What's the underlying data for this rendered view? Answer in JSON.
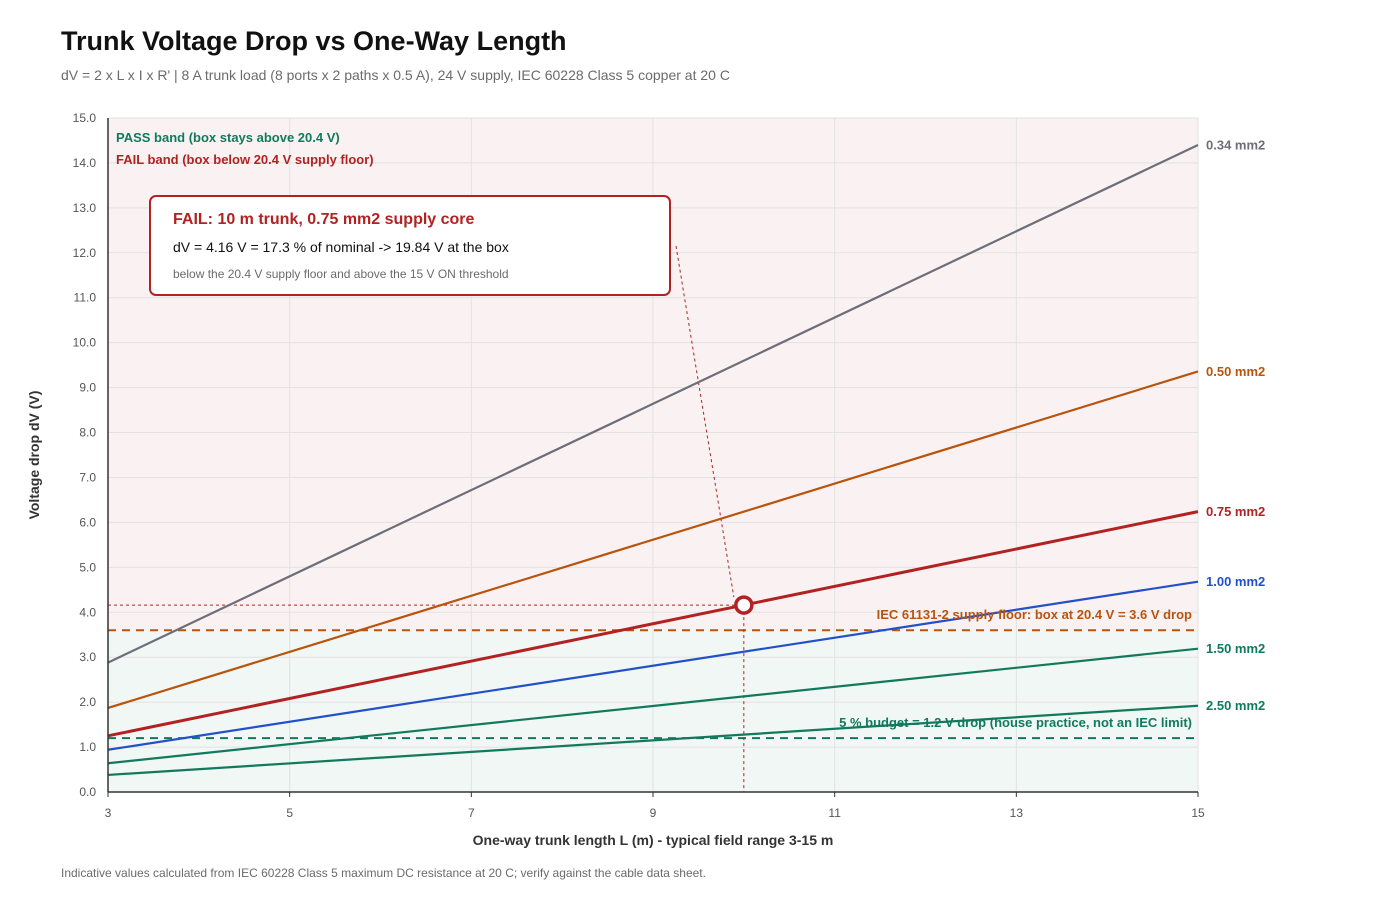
{
  "title": "Trunk Voltage Drop vs One-Way Length",
  "subtitle": "dV = 2 x L x I x R' | 8 A trunk load (8 ports x 2 paths x 0.5 A), 24 V supply, IEC 60228 Class 5 copper at 20 C",
  "footnote": "Indicative values calculated from IEC 60228 Class 5 maximum DC resistance at 20 C; verify against the cable data sheet.",
  "callout": {
    "title": "FAIL: 10 m trunk, 0.75 mm2 supply core",
    "line1": "dV = 4.16 V = 17.3 % of nominal -> 19.84 V at the box",
    "line2": "below the 20.4 V supply floor and above the 15 V ON threshold"
  },
  "chart_data": {
    "type": "line",
    "xlabel": "One-way trunk length L (m) - typical field range 3-15 m",
    "ylabel": "Voltage drop dV (V)",
    "xlim": [
      3,
      15
    ],
    "ylim": [
      0,
      15
    ],
    "x_ticks": [
      3,
      5,
      7,
      9,
      11,
      13,
      15
    ],
    "y_ticks": [
      0.0,
      1.0,
      2.0,
      3.0,
      4.0,
      5.0,
      6.0,
      7.0,
      8.0,
      9.0,
      10.0,
      11.0,
      12.0,
      13.0,
      14.0,
      15.0
    ],
    "grid": true,
    "x": [
      3,
      15
    ],
    "series": [
      {
        "name": "0.34 mm2",
        "values": [
          2.88,
          14.4
        ],
        "color": "#6e6e78"
      },
      {
        "name": "0.50 mm2",
        "values": [
          1.87,
          9.36
        ],
        "color": "#b8540d"
      },
      {
        "name": "0.75 mm2",
        "values": [
          1.25,
          6.24
        ],
        "color": "#b22222"
      },
      {
        "name": "1.00 mm2",
        "values": [
          0.94,
          4.68
        ],
        "color": "#2250c8"
      },
      {
        "name": "1.50 mm2",
        "values": [
          0.64,
          3.19
        ],
        "color": "#127a5c"
      },
      {
        "name": "2.50 mm2",
        "values": [
          0.38,
          1.92
        ],
        "color": "#127a5c"
      }
    ],
    "bands": [
      {
        "label": "PASS band (box stays above 20.4 V)",
        "range": [
          0,
          3.6
        ],
        "color": "#127a5c"
      },
      {
        "label": "FAIL band (box below 20.4 V supply floor)",
        "range": [
          3.6,
          15
        ],
        "color": "#b22222"
      }
    ],
    "reference_lines": [
      {
        "label": "IEC 61131-2 supply floor: box at 20.4 V = 3.6 V drop",
        "y": 3.6,
        "color": "#b8540d"
      },
      {
        "label": "5 % budget = 1.2 V drop (house practice, not an IEC limit)",
        "y": 1.2,
        "color": "#127a5c"
      }
    ],
    "highlight": {
      "x": 10,
      "y": 4.16,
      "series": "0.75 mm2",
      "color": "#b22222"
    }
  }
}
